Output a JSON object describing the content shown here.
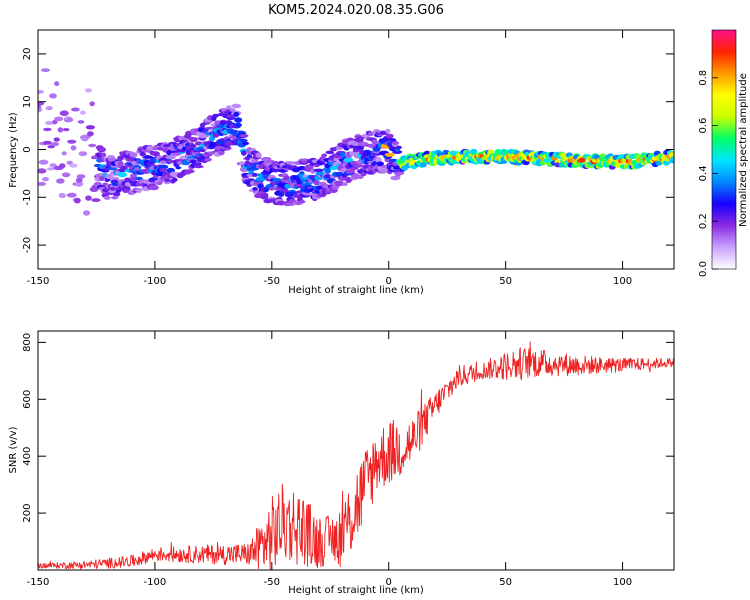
{
  "figure": {
    "title": "KOM5.2024.020.08.35.G06"
  },
  "chart_data": [
    {
      "type": "heatmap",
      "xlabel": "Height of straight line (km)",
      "ylabel": "Frequency (Hz)",
      "xlim": [
        -150,
        122
      ],
      "ylim": [
        -25,
        25
      ],
      "x_ticks": [
        -150,
        -100,
        -50,
        0,
        50,
        100
      ],
      "y_ticks": [
        -20,
        -10,
        0,
        10,
        20
      ],
      "grid": false,
      "colorbar": {
        "label": "Normalized spectral amplitude",
        "range": [
          0,
          1
        ],
        "ticks": [
          "0.0",
          "0.2",
          "0.4",
          "0.6",
          "0.8"
        ],
        "colors": [
          "#ffffff",
          "#c9a3ff",
          "#8a2be2",
          "#1a00ff",
          "#0088ff",
          "#00e5ff",
          "#00ff66",
          "#c8ff00",
          "#ffff00",
          "#ff9900",
          "#ff2200",
          "#ff1188"
        ]
      },
      "ridge": {
        "description_points": [
          {
            "x": -150,
            "y": 4
          },
          {
            "x": -130,
            "y": 0
          },
          {
            "x": -120,
            "y": -6
          },
          {
            "x": -105,
            "y": -4
          },
          {
            "x": -95,
            "y": -3
          },
          {
            "x": -85,
            "y": -1
          },
          {
            "x": -75,
            "y": 3
          },
          {
            "x": -65,
            "y": 5
          },
          {
            "x": -60,
            "y": -4
          },
          {
            "x": -50,
            "y": -7
          },
          {
            "x": -40,
            "y": -7
          },
          {
            "x": -30,
            "y": -6
          },
          {
            "x": -20,
            "y": -3
          },
          {
            "x": -10,
            "y": -1
          },
          {
            "x": 0,
            "y": 0
          },
          {
            "x": 5,
            "y": -3
          },
          {
            "x": 15,
            "y": -2
          },
          {
            "x": 30,
            "y": -1.5
          },
          {
            "x": 50,
            "y": -1.5
          },
          {
            "x": 70,
            "y": -2
          },
          {
            "x": 90,
            "y": -2.5
          },
          {
            "x": 105,
            "y": -2.5
          },
          {
            "x": 122,
            "y": -1.5
          }
        ]
      }
    },
    {
      "type": "line",
      "xlabel": "Height of straight line (km)",
      "ylabel": "SNR (v/v)",
      "xlim": [
        -150,
        122
      ],
      "ylim": [
        0,
        840
      ],
      "x_ticks": [
        -150,
        -100,
        -50,
        0,
        50,
        100
      ],
      "y_ticks": [
        200,
        400,
        600,
        800
      ],
      "grid": false,
      "series": [
        {
          "color": "#ee2222",
          "trend": [
            {
              "x": -150,
              "y": 15
            },
            {
              "x": -130,
              "y": 18
            },
            {
              "x": -110,
              "y": 30
            },
            {
              "x": -100,
              "y": 55
            },
            {
              "x": -80,
              "y": 55
            },
            {
              "x": -60,
              "y": 55
            },
            {
              "x": -52,
              "y": 100
            },
            {
              "x": -45,
              "y": 170
            },
            {
              "x": -38,
              "y": 150
            },
            {
              "x": -30,
              "y": 100
            },
            {
              "x": -20,
              "y": 120
            },
            {
              "x": -12,
              "y": 260
            },
            {
              "x": -5,
              "y": 390
            },
            {
              "x": 0,
              "y": 410
            },
            {
              "x": 10,
              "y": 450
            },
            {
              "x": 20,
              "y": 580
            },
            {
              "x": 30,
              "y": 680
            },
            {
              "x": 45,
              "y": 710
            },
            {
              "x": 60,
              "y": 730
            },
            {
              "x": 80,
              "y": 720
            },
            {
              "x": 100,
              "y": 720
            },
            {
              "x": 122,
              "y": 730
            }
          ],
          "noise": [
            {
              "x": -150,
              "y": 8
            },
            {
              "x": -100,
              "y": 25
            },
            {
              "x": -60,
              "y": 40
            },
            {
              "x": -50,
              "y": 140
            },
            {
              "x": -40,
              "y": 140
            },
            {
              "x": -25,
              "y": 80
            },
            {
              "x": -15,
              "y": 150
            },
            {
              "x": -5,
              "y": 120
            },
            {
              "x": 5,
              "y": 110
            },
            {
              "x": 20,
              "y": 50
            },
            {
              "x": 40,
              "y": 30
            },
            {
              "x": 55,
              "y": 60
            },
            {
              "x": 70,
              "y": 45
            },
            {
              "x": 90,
              "y": 30
            },
            {
              "x": 122,
              "y": 15
            }
          ]
        }
      ]
    }
  ]
}
